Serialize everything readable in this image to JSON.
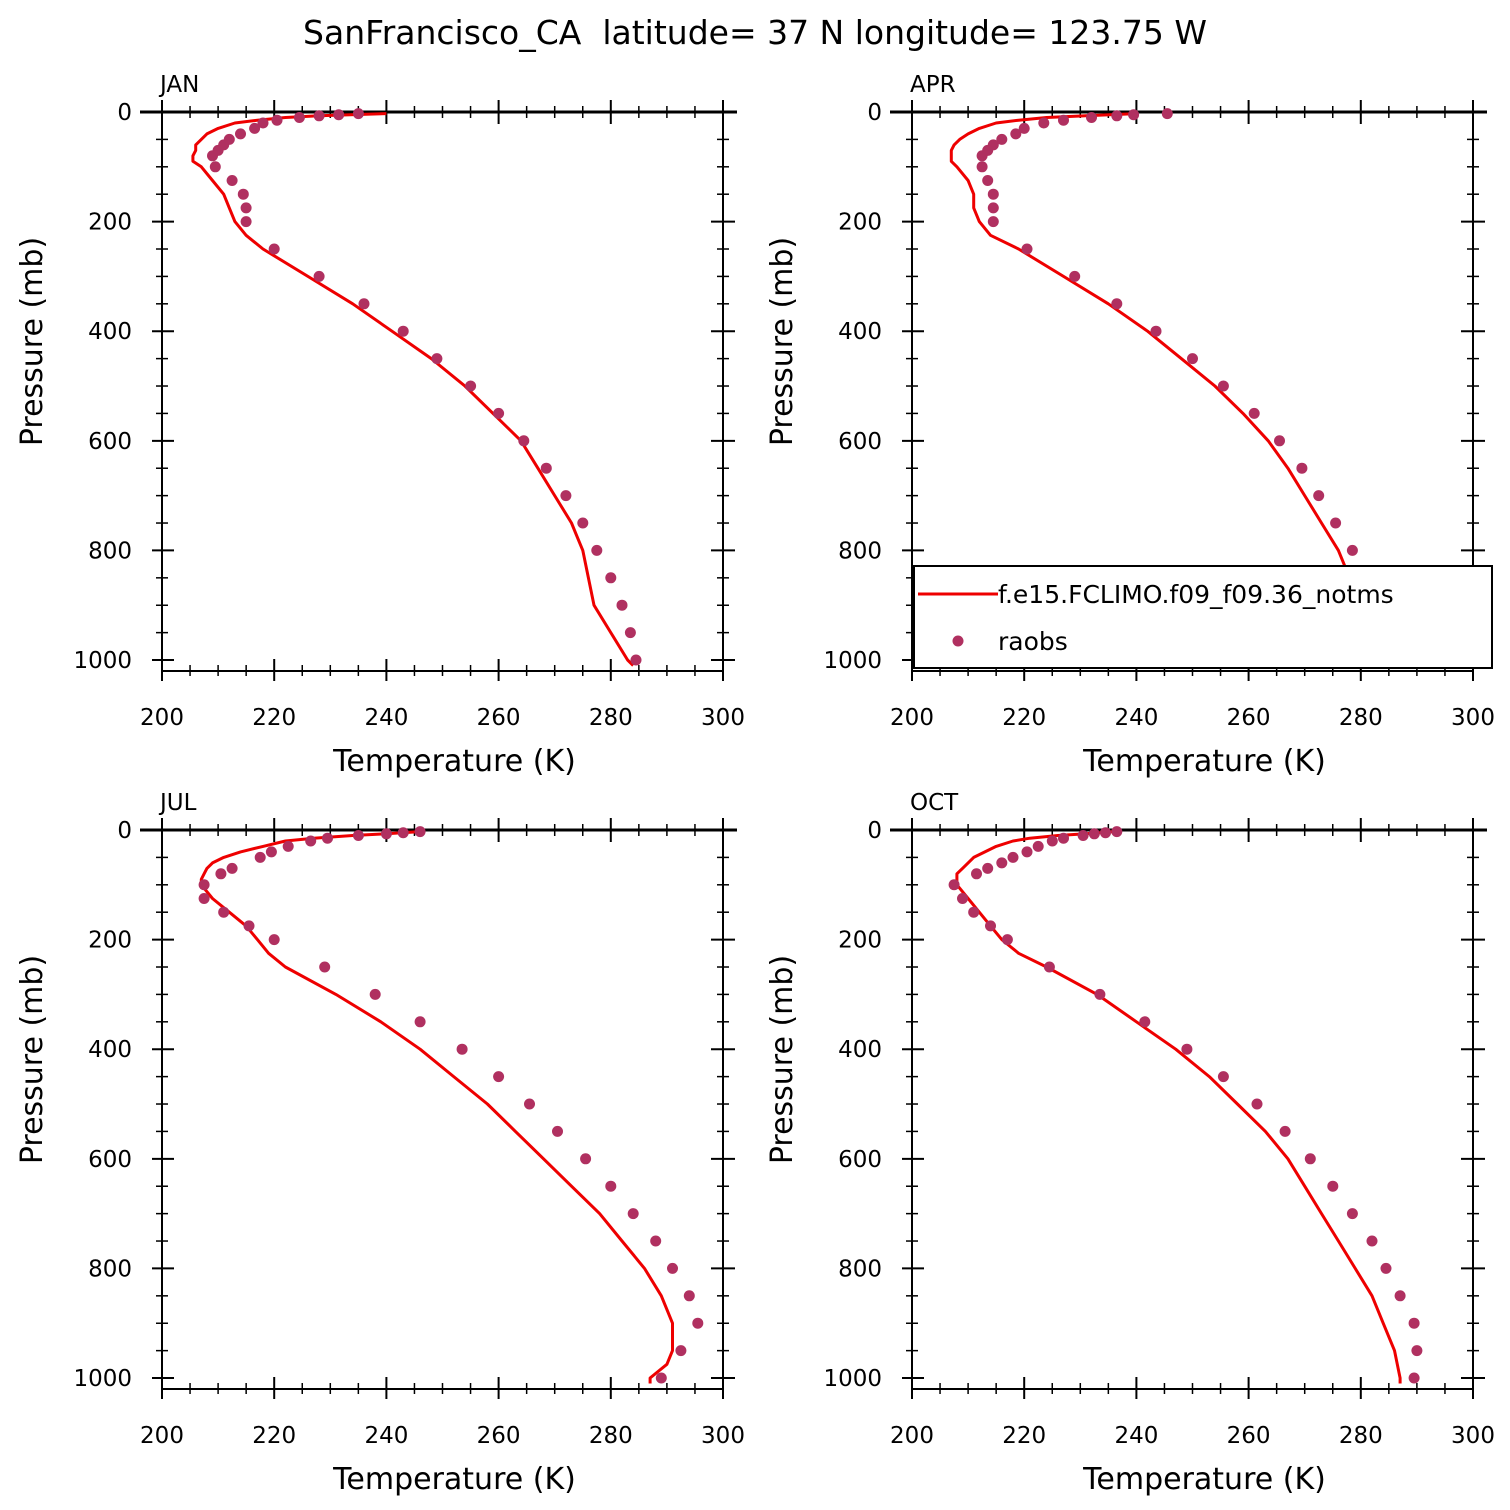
{
  "figure_title": "SanFrancisco_CA  latitude= 37 N longitude= 123.75 W",
  "colors": {
    "model": "#ee0000",
    "obs": "#b03060",
    "axes": "#000000"
  },
  "legend": {
    "placement": "inside APR panel, lower region",
    "entries": [
      {
        "label": "f.e15.FCLIMO.f09_f09.36_notms",
        "marker": "line"
      },
      {
        "label": "raobs",
        "marker": "dot"
      }
    ]
  },
  "chart_data": [
    {
      "panel": "JAN",
      "type": "line",
      "title": "JAN",
      "xlabel": "Temperature (K)",
      "ylabel": "Pressure (mb)",
      "xlim": [
        200,
        300
      ],
      "ylim": [
        0,
        1020
      ],
      "y_inverted": true,
      "xticks": [
        200,
        220,
        240,
        260,
        280,
        300
      ],
      "yticks": [
        0,
        200,
        400,
        600,
        800,
        1000
      ],
      "series": [
        {
          "name": "f.e15.FCLIMO.f09_f09.36_notms",
          "kind": "line",
          "p": [
            3,
            7,
            10,
            15,
            20,
            30,
            40,
            50,
            60,
            70,
            80,
            90,
            100,
            125,
            150,
            175,
            200,
            225,
            250,
            300,
            350,
            400,
            450,
            500,
            550,
            600,
            650,
            700,
            750,
            775,
            800,
            850,
            900,
            950,
            1000,
            1010
          ],
          "t": [
            240,
            228,
            222,
            217,
            213,
            210,
            208,
            207,
            206,
            206,
            205.5,
            205.5,
            207,
            209,
            211,
            212,
            213,
            215,
            218,
            226,
            234,
            241,
            248,
            254,
            259,
            264,
            267,
            270,
            273,
            274,
            275,
            276,
            277,
            280,
            283,
            284
          ]
        },
        {
          "name": "raobs",
          "kind": "points",
          "p": [
            3,
            5,
            7,
            10,
            15,
            20,
            30,
            40,
            50,
            60,
            70,
            80,
            100,
            125,
            150,
            175,
            200,
            250,
            300,
            350,
            400,
            450,
            500,
            550,
            600,
            650,
            700,
            750,
            800,
            850,
            900,
            950,
            1000
          ],
          "t": [
            235,
            231.5,
            228,
            224.5,
            220.5,
            218,
            216.5,
            214,
            212,
            211,
            210,
            209,
            209.5,
            212.5,
            214.5,
            215,
            215,
            220,
            228,
            236,
            243,
            249,
            255,
            260,
            264.5,
            268.5,
            272,
            275,
            277.5,
            280,
            282,
            283.5,
            284.5
          ]
        }
      ]
    },
    {
      "panel": "APR",
      "type": "line",
      "title": "APR",
      "xlabel": "Temperature (K)",
      "ylabel": "Pressure (mb)",
      "xlim": [
        200,
        300
      ],
      "ylim": [
        0,
        1020
      ],
      "y_inverted": true,
      "xticks": [
        200,
        220,
        240,
        260,
        280,
        300
      ],
      "yticks": [
        0,
        200,
        400,
        600,
        800,
        1000
      ],
      "series": [
        {
          "name": "f.e15.FCLIMO.f09_f09.36_notms",
          "kind": "line",
          "p": [
            3,
            7,
            10,
            15,
            20,
            30,
            40,
            50,
            60,
            70,
            80,
            90,
            100,
            125,
            150,
            175,
            200,
            225,
            250,
            300,
            350,
            400,
            450,
            500,
            550,
            600,
            650,
            700,
            750,
            800,
            850,
            900,
            950,
            1000,
            1010
          ],
          "t": [
            240,
            231,
            224,
            219,
            215,
            212,
            210,
            208.5,
            207.5,
            207,
            207,
            207,
            208,
            210,
            211,
            211,
            212,
            214,
            219,
            227,
            235,
            242,
            248,
            254,
            259,
            263.5,
            267,
            270,
            273,
            276,
            278,
            280,
            282,
            284,
            285
          ]
        },
        {
          "name": "raobs",
          "kind": "points",
          "p": [
            3,
            5,
            7,
            10,
            15,
            20,
            30,
            40,
            50,
            60,
            70,
            80,
            100,
            125,
            150,
            175,
            200,
            250,
            300,
            350,
            400,
            450,
            500,
            550,
            600,
            650,
            700,
            750,
            800,
            850,
            900,
            950,
            1000
          ],
          "t": [
            245.5,
            239.5,
            236.5,
            232,
            227,
            223.5,
            220,
            218.5,
            216,
            214.5,
            213.5,
            212.5,
            212.5,
            213.5,
            214.5,
            214.5,
            214.5,
            220.5,
            229,
            236.5,
            243.5,
            250,
            255.5,
            261,
            265.5,
            269.5,
            272.5,
            275.5,
            278.5,
            281,
            283,
            284.5,
            285.5
          ]
        }
      ]
    },
    {
      "panel": "JUL",
      "type": "line",
      "title": "JUL",
      "xlabel": "Temperature (K)",
      "ylabel": "Pressure (mb)",
      "xlim": [
        200,
        300
      ],
      "ylim": [
        0,
        1020
      ],
      "y_inverted": true,
      "xticks": [
        200,
        220,
        240,
        260,
        280,
        300
      ],
      "yticks": [
        0,
        200,
        400,
        600,
        800,
        1000
      ],
      "series": [
        {
          "name": "f.e15.FCLIMO.f09_f09.36_notms",
          "kind": "line",
          "p": [
            3,
            7,
            10,
            15,
            20,
            30,
            40,
            50,
            60,
            70,
            80,
            90,
            100,
            125,
            150,
            175,
            200,
            225,
            250,
            300,
            350,
            400,
            450,
            500,
            550,
            600,
            650,
            700,
            750,
            800,
            850,
            900,
            950,
            975,
            1000,
            1010
          ],
          "t": [
            246,
            240,
            234,
            227,
            222,
            218,
            214,
            211,
            209,
            208,
            207.5,
            207,
            207,
            209,
            212,
            215,
            217,
            219,
            222,
            231,
            239,
            246,
            252,
            258,
            263,
            268,
            273,
            278,
            282,
            286,
            289,
            291,
            291,
            290,
            287,
            287
          ]
        },
        {
          "name": "raobs",
          "kind": "points",
          "p": [
            3,
            5,
            7,
            10,
            15,
            20,
            30,
            40,
            50,
            70,
            80,
            100,
            125,
            150,
            175,
            200,
            250,
            300,
            350,
            400,
            450,
            500,
            550,
            600,
            650,
            700,
            750,
            800,
            850,
            900,
            950,
            1000
          ],
          "t": [
            246,
            243,
            240,
            235,
            229.5,
            226.5,
            222.5,
            219.5,
            217.5,
            212.5,
            210.5,
            207.5,
            207.5,
            211,
            215.5,
            220,
            229,
            238,
            246,
            253.5,
            260,
            265.5,
            270.5,
            275.5,
            280,
            284,
            288,
            291,
            294,
            295.5,
            292.5,
            289
          ]
        }
      ]
    },
    {
      "panel": "OCT",
      "type": "line",
      "title": "OCT",
      "xlabel": "Temperature (K)",
      "ylabel": "Pressure (mb)",
      "xlim": [
        200,
        300
      ],
      "ylim": [
        0,
        1020
      ],
      "y_inverted": true,
      "xticks": [
        200,
        220,
        240,
        260,
        280,
        300
      ],
      "yticks": [
        0,
        200,
        400,
        600,
        800,
        1000
      ],
      "series": [
        {
          "name": "f.e15.FCLIMO.f09_f09.36_notms",
          "kind": "line",
          "p": [
            3,
            7,
            10,
            15,
            20,
            30,
            40,
            50,
            60,
            70,
            80,
            90,
            100,
            125,
            150,
            175,
            200,
            225,
            250,
            300,
            350,
            400,
            450,
            500,
            550,
            600,
            650,
            700,
            750,
            800,
            850,
            900,
            950,
            1000,
            1010
          ],
          "t": [
            236,
            231,
            226,
            221,
            218,
            215,
            213,
            211,
            210,
            209,
            208,
            208,
            208,
            210,
            212,
            214,
            216,
            219,
            224,
            233,
            240,
            247,
            253,
            258,
            263,
            267,
            270,
            273,
            276,
            279,
            282,
            284,
            286,
            287,
            287
          ]
        },
        {
          "name": "raobs",
          "kind": "points",
          "p": [
            3,
            5,
            7,
            10,
            15,
            20,
            30,
            40,
            50,
            60,
            70,
            80,
            100,
            125,
            150,
            175,
            200,
            250,
            300,
            350,
            400,
            450,
            500,
            550,
            600,
            650,
            700,
            750,
            800,
            850,
            900,
            950,
            1000
          ],
          "t": [
            236.5,
            234.5,
            232.5,
            230.5,
            227,
            225,
            222.5,
            220.5,
            218,
            216,
            213.5,
            211.5,
            207.5,
            209,
            211,
            214,
            217,
            224.5,
            233.5,
            241.5,
            249,
            255.5,
            261.5,
            266.5,
            271,
            275,
            278.5,
            282,
            284.5,
            287,
            289.5,
            290,
            289.5
          ]
        }
      ]
    }
  ]
}
